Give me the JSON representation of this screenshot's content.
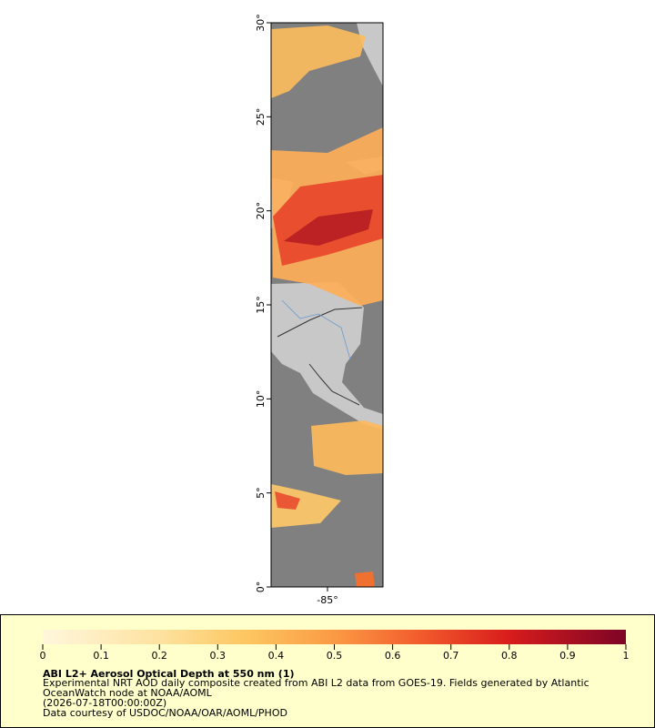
{
  "map": {
    "lat_ticks": [
      "0°",
      "5°",
      "10°",
      "15°",
      "20°",
      "25°",
      "30°"
    ],
    "lon_ticks": [
      "-85°"
    ]
  },
  "legend": {
    "ticks": [
      0,
      0.1,
      0.2,
      0.3,
      0.4,
      0.5,
      0.6,
      0.7,
      0.8,
      0.9,
      1
    ],
    "title": "ABI L2+ Aerosol Optical Depth at 550 nm (1)",
    "lines": [
      "Experimental NRT AOD daily composite created from ABI L2 data from GOES-19. Fields generated by Atlantic",
      "OceanWatch node at NOAA/AOML",
      "(2026-07-18T00:00:00Z)",
      "Data courtesy of USDOC/NOAA/OAR/AOML/PHOD"
    ]
  }
}
